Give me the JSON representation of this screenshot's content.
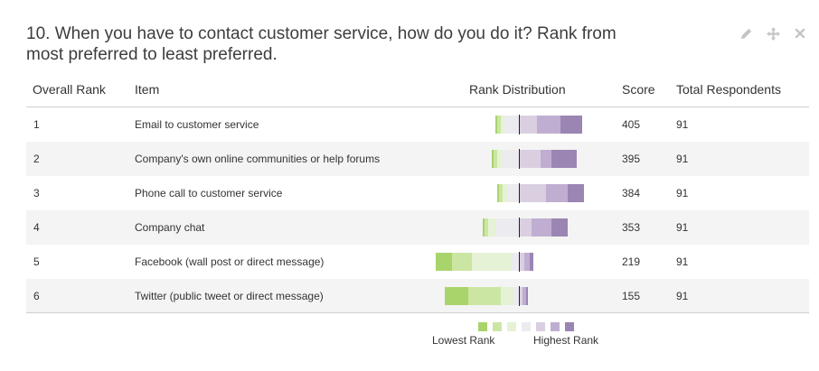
{
  "question": {
    "title": "10. When you have to contact customer service, how do you do it? Rank from most preferred to least preferred."
  },
  "toolbar": {
    "edit_icon": "pencil-icon",
    "move_icon": "move-arrows-icon",
    "close_icon": "close-icon",
    "icon_color": "#c4c4c4"
  },
  "table": {
    "headers": {
      "rank": "Overall Rank",
      "item": "Item",
      "distribution": "Rank Distribution",
      "score": "Score",
      "total": "Total Respondents"
    },
    "rows": [
      {
        "rank": "1",
        "item": "Email to customer service",
        "score": "405",
        "total": "91"
      },
      {
        "rank": "2",
        "item": "Company's own online communities or help forums",
        "score": "395",
        "total": "91"
      },
      {
        "rank": "3",
        "item": "Phone call to customer service",
        "score": "384",
        "total": "91"
      },
      {
        "rank": "4",
        "item": "Company chat",
        "score": "353",
        "total": "91"
      },
      {
        "rank": "5",
        "item": "Facebook (wall post or direct message)",
        "score": "219",
        "total": "91"
      },
      {
        "rank": "6",
        "item": "Twitter (public tweet or direct message)",
        "score": "155",
        "total": "91"
      }
    ]
  },
  "rank_colors": [
    "#a9d46c",
    "#cbe6a2",
    "#e6f2d6",
    "#ecebf0",
    "#d9cfe1",
    "#bfaed1",
    "#9b85b3"
  ],
  "legend": {
    "low_label": "Lowest Rank",
    "high_label": "Highest Rank"
  }
}
